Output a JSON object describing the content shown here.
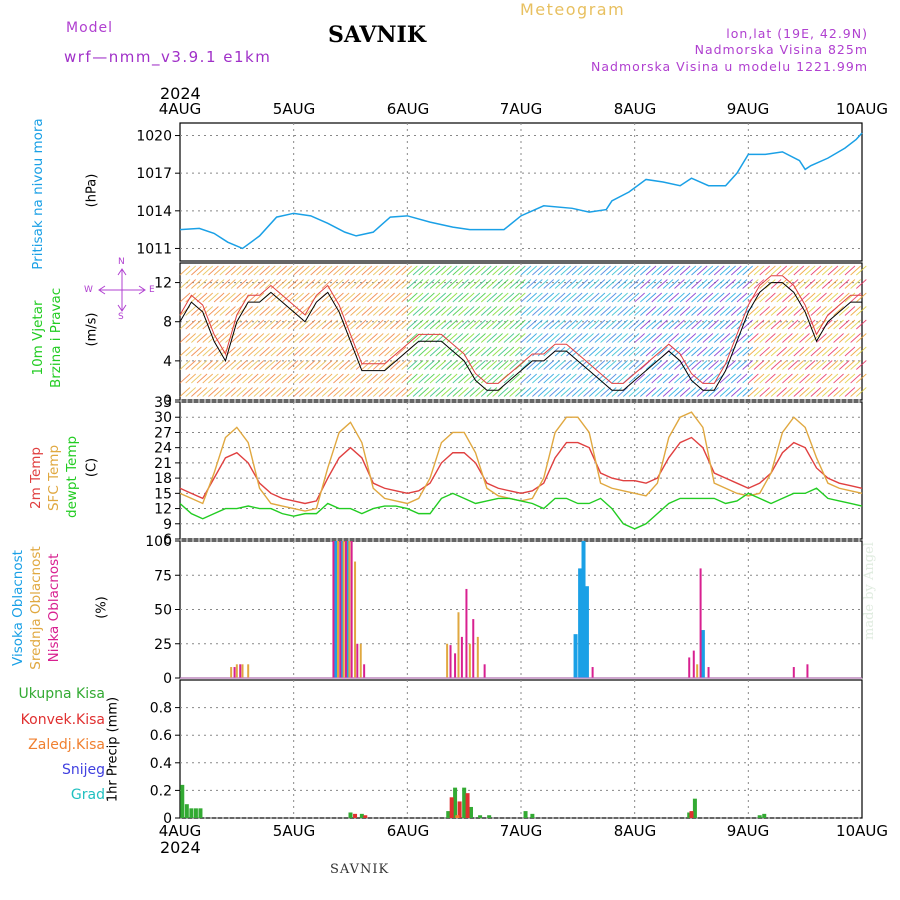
{
  "header": {
    "model_label": "Model",
    "model_name": "wrf—nmm_v3.9.1  e1km",
    "station": "SAVNIK",
    "meteogram": "Meteogram",
    "lonlat": "lon,lat (19E, 42.9N)",
    "elevation": "Nadmorska Visina 825m",
    "model_elevation": "Nadmorska Visina u modelu 1221.99m",
    "year": "2024"
  },
  "footer": {
    "year": "2024",
    "station": "SAVNIK"
  },
  "watermark": "made by Angel",
  "x_axis": {
    "ticks": [
      "4AUG",
      "5AUG",
      "6AUG",
      "7AUG",
      "8AUG",
      "9AUG",
      "10AUG"
    ]
  },
  "panel_labels": {
    "pressure": [
      "Pritisak na nivou mora",
      "(hPa)"
    ],
    "wind": [
      "10m Vjetar",
      "Brzina i Pravac",
      "(m/s)"
    ],
    "temp": [
      "2m Temp",
      "SFC Temp",
      "dewpt Temp",
      "(C)"
    ],
    "cloud": [
      "Visoka Oblacnost",
      "Srednja Oblacnost",
      "Niska Oblacnost",
      "(%)"
    ],
    "precip_unit": "1hr Precip (mm)"
  },
  "compass": {
    "n": "N",
    "s": "S",
    "w": "W",
    "e": "E"
  },
  "precip_legend": [
    "Ukupna Kisa",
    "Konvek.Kisa",
    "Zaledj.Kisa",
    "Snijeg",
    "Grad"
  ],
  "colors": {
    "pressure": "#1aa0e6",
    "temp2m": "#e04040",
    "sfc": "#e0a840",
    "dewpt": "#22cc22",
    "cloud_high": "#1aa0e6",
    "cloud_mid": "#e0a840",
    "cloud_low": "#d82090",
    "rain_total": "#33aa33",
    "rain_conv": "#e03030",
    "rain_frz": "#f08030",
    "snow": "#4040e0",
    "hail": "#20c0c0",
    "title_purple": "#b040d0"
  },
  "chart_data": [
    {
      "type": "line",
      "title": "",
      "ylabel": "Pritisak na nivou mora (hPa)",
      "ylim": [
        1010,
        1021
      ],
      "yticks": [
        1011,
        1014,
        1017,
        1020
      ],
      "grid": true,
      "x_days": [
        0,
        0.17,
        0.3,
        0.42,
        0.55,
        0.7,
        0.85,
        1.0,
        1.15,
        1.3,
        1.45,
        1.55,
        1.7,
        1.85,
        2.0,
        2.2,
        2.4,
        2.55,
        2.7,
        2.85,
        3.0,
        3.2,
        3.45,
        3.6,
        3.75,
        3.8,
        3.95,
        4.1,
        4.25,
        4.4,
        4.5,
        4.65,
        4.8,
        4.9,
        5.0,
        5.15,
        5.3,
        5.45,
        5.5,
        5.55,
        5.7,
        5.85,
        5.95,
        6.0
      ],
      "series": [
        {
          "name": "Pritisak na nivou mora",
          "values": [
            1012.5,
            1012.6,
            1012.2,
            1011.5,
            1011.0,
            1012.0,
            1013.5,
            1013.8,
            1013.6,
            1013.0,
            1012.3,
            1012.0,
            1012.3,
            1013.5,
            1013.6,
            1013.1,
            1012.7,
            1012.5,
            1012.5,
            1012.5,
            1013.6,
            1014.4,
            1014.2,
            1013.9,
            1014.1,
            1014.8,
            1015.5,
            1016.5,
            1016.3,
            1016.0,
            1016.6,
            1016.0,
            1016.0,
            1017.0,
            1018.5,
            1018.5,
            1018.7,
            1018.0,
            1017.3,
            1017.6,
            1018.2,
            1019.0,
            1019.7,
            1020.2
          ]
        }
      ]
    },
    {
      "type": "line",
      "title": "",
      "ylabel": "10m Vjetar Brzina i Pravac (m/s)",
      "ylim": [
        0,
        14
      ],
      "yticks": [
        0,
        4,
        8,
        12
      ],
      "grid": true,
      "x_days": [
        0,
        0.1,
        0.2,
        0.3,
        0.4,
        0.5,
        0.6,
        0.7,
        0.8,
        0.9,
        1.0,
        1.1,
        1.2,
        1.3,
        1.4,
        1.5,
        1.6,
        1.7,
        1.8,
        1.9,
        2.0,
        2.1,
        2.2,
        2.3,
        2.4,
        2.5,
        2.6,
        2.7,
        2.8,
        2.9,
        3.0,
        3.1,
        3.2,
        3.3,
        3.4,
        3.5,
        3.6,
        3.7,
        3.8,
        3.9,
        4.0,
        4.1,
        4.2,
        4.3,
        4.4,
        4.5,
        4.6,
        4.7,
        4.8,
        4.9,
        5.0,
        5.1,
        5.2,
        5.3,
        5.4,
        5.5,
        5.6,
        5.7,
        5.8,
        5.9,
        6.0
      ],
      "series": [
        {
          "name": "",
          "values": [
            8,
            10,
            9,
            6,
            4,
            8,
            10,
            10,
            11,
            10,
            9,
            8,
            10,
            11,
            9,
            6,
            3,
            3,
            3,
            4,
            5,
            6,
            6,
            6,
            5,
            4,
            2,
            1,
            1,
            2,
            3,
            4,
            4,
            5,
            5,
            4,
            3,
            2,
            1,
            1,
            2,
            3,
            4,
            5,
            4,
            2,
            1,
            1,
            3,
            6,
            9,
            11,
            12,
            12,
            11,
            9,
            6,
            8,
            9,
            10,
            10
          ]
        }
      ],
      "barb_colors_by_day": [
        "orange",
        "orange",
        "green",
        "blue",
        "blue-purple",
        "red-yellow"
      ]
    },
    {
      "type": "line",
      "title": "",
      "ylabel": "2m Temp / SFC Temp / dewpt Temp (C)",
      "ylim": [
        6,
        33
      ],
      "yticks": [
        6,
        9,
        12,
        15,
        18,
        21,
        24,
        27,
        30,
        33
      ],
      "grid": true,
      "x_days": [
        0,
        0.1,
        0.2,
        0.3,
        0.4,
        0.5,
        0.6,
        0.7,
        0.8,
        0.9,
        1.0,
        1.1,
        1.2,
        1.3,
        1.4,
        1.5,
        1.6,
        1.7,
        1.8,
        1.9,
        2.0,
        2.1,
        2.2,
        2.3,
        2.4,
        2.5,
        2.6,
        2.7,
        2.8,
        2.9,
        3.0,
        3.1,
        3.2,
        3.3,
        3.4,
        3.5,
        3.6,
        3.7,
        3.8,
        3.9,
        4.0,
        4.1,
        4.2,
        4.3,
        4.4,
        4.5,
        4.6,
        4.7,
        4.8,
        4.9,
        5.0,
        5.1,
        5.2,
        5.3,
        5.4,
        5.5,
        5.6,
        5.7,
        5.8,
        5.9,
        6.0
      ],
      "series": [
        {
          "name": "2m Temp",
          "values": [
            16,
            15,
            14,
            18,
            22,
            23,
            21,
            17,
            15,
            14,
            13.5,
            13,
            13.5,
            18,
            22,
            24,
            22,
            17,
            16,
            15.5,
            15,
            15.5,
            17,
            21,
            23,
            23,
            21,
            17,
            16,
            15.5,
            15,
            15.5,
            17,
            22,
            25,
            25,
            24,
            19,
            18,
            17.5,
            17.5,
            17,
            18,
            22,
            25,
            26,
            24,
            19,
            18,
            17,
            16,
            17,
            19,
            23,
            25,
            24,
            20,
            18,
            17,
            16.5,
            16
          ]
        },
        {
          "name": "SFC Temp",
          "values": [
            15,
            14,
            13,
            19,
            26,
            28,
            25,
            16,
            13,
            12.5,
            12,
            11.5,
            12,
            20,
            27,
            29,
            25,
            16,
            14,
            13.5,
            13,
            14,
            18,
            25,
            27,
            27,
            23,
            16,
            14.5,
            14,
            13.5,
            14,
            18,
            27,
            30,
            30,
            27,
            17,
            16,
            15.5,
            15,
            14.5,
            17,
            26,
            30,
            31,
            28,
            17,
            16,
            15,
            14.5,
            15,
            19,
            27,
            30,
            28,
            22,
            17,
            16,
            15.5,
            15
          ]
        },
        {
          "name": "dewpt Temp",
          "values": [
            13,
            11,
            10,
            11,
            12,
            12,
            12.5,
            12,
            12,
            11,
            10.5,
            11,
            11,
            13,
            12,
            12,
            11,
            12,
            12.5,
            12.5,
            12,
            11,
            11,
            14,
            15,
            14,
            13,
            13.5,
            14,
            14,
            13.5,
            13,
            12,
            14,
            14,
            13,
            13,
            14,
            12,
            9,
            8,
            9,
            11,
            13,
            14,
            14,
            14,
            14,
            13,
            13.5,
            15,
            14,
            13,
            14,
            15,
            15,
            16,
            14,
            13.5,
            13,
            12.5
          ]
        }
      ]
    },
    {
      "type": "bar",
      "title": "",
      "ylabel": "Oblacnost (%)",
      "ylim": [
        0,
        100
      ],
      "yticks": [
        0,
        25,
        50,
        75,
        100
      ],
      "grid": true,
      "series": [
        {
          "name": "Visoka Oblacnost",
          "points": [
            [
              1.37,
              100
            ],
            [
              1.42,
              100
            ],
            [
              1.47,
              100
            ],
            [
              3.48,
              32
            ],
            [
              3.52,
              80
            ],
            [
              3.55,
              100
            ],
            [
              3.58,
              67
            ],
            [
              4.6,
              35
            ]
          ]
        },
        {
          "name": "Srednja Oblacnost",
          "points": [
            [
              0.45,
              8
            ],
            [
              0.5,
              10
            ],
            [
              0.55,
              10
            ],
            [
              0.6,
              10
            ],
            [
              1.39,
              100
            ],
            [
              1.44,
              100
            ],
            [
              1.49,
              100
            ],
            [
              1.54,
              85
            ],
            [
              1.59,
              25
            ],
            [
              2.35,
              25
            ],
            [
              2.45,
              48
            ],
            [
              2.55,
              25
            ],
            [
              2.62,
              30
            ],
            [
              4.55,
              10
            ]
          ]
        },
        {
          "name": "Niska Oblacnost",
          "points": [
            [
              0.48,
              8
            ],
            [
              0.53,
              10
            ],
            [
              1.35,
              100
            ],
            [
              1.41,
              100
            ],
            [
              1.46,
              100
            ],
            [
              1.51,
              100
            ],
            [
              1.56,
              25
            ],
            [
              1.62,
              10
            ],
            [
              2.38,
              24
            ],
            [
              2.42,
              18
            ],
            [
              2.48,
              30
            ],
            [
              2.52,
              65
            ],
            [
              2.58,
              43
            ],
            [
              2.68,
              10
            ],
            [
              3.63,
              8
            ],
            [
              4.48,
              15
            ],
            [
              4.52,
              20
            ],
            [
              4.58,
              80
            ],
            [
              4.65,
              8
            ],
            [
              5.4,
              8
            ],
            [
              5.52,
              10
            ]
          ]
        }
      ]
    },
    {
      "type": "bar",
      "title": "",
      "ylabel": "1hr Precip (mm)",
      "ylim": [
        0,
        1.0
      ],
      "yticks": [
        0,
        0.2,
        0.4,
        0.6,
        0.8
      ],
      "grid": true,
      "series": [
        {
          "name": "Ukupna Kisa",
          "points": [
            [
              0.02,
              0.24
            ],
            [
              0.06,
              0.1
            ],
            [
              0.1,
              0.07
            ],
            [
              0.14,
              0.07
            ],
            [
              0.18,
              0.07
            ],
            [
              1.5,
              0.04
            ],
            [
              1.6,
              0.03
            ],
            [
              2.36,
              0.05
            ],
            [
              2.42,
              0.22
            ],
            [
              2.5,
              0.22
            ],
            [
              2.56,
              0.08
            ],
            [
              2.64,
              0.02
            ],
            [
              2.72,
              0.02
            ],
            [
              3.04,
              0.05
            ],
            [
              3.1,
              0.03
            ],
            [
              4.48,
              0.04
            ],
            [
              4.53,
              0.14
            ],
            [
              5.1,
              0.02
            ],
            [
              5.14,
              0.03
            ]
          ]
        },
        {
          "name": "Konvek.Kisa",
          "points": [
            [
              1.54,
              0.03
            ],
            [
              1.63,
              0.02
            ],
            [
              2.39,
              0.15
            ],
            [
              2.46,
              0.12
            ],
            [
              2.53,
              0.18
            ],
            [
              4.5,
              0.05
            ]
          ]
        },
        {
          "name": "Zaledj.Kisa",
          "points": [
            [
              2.44,
              0.02
            ]
          ]
        },
        {
          "name": "Snijeg",
          "points": []
        },
        {
          "name": "Grad",
          "points": []
        }
      ]
    }
  ]
}
